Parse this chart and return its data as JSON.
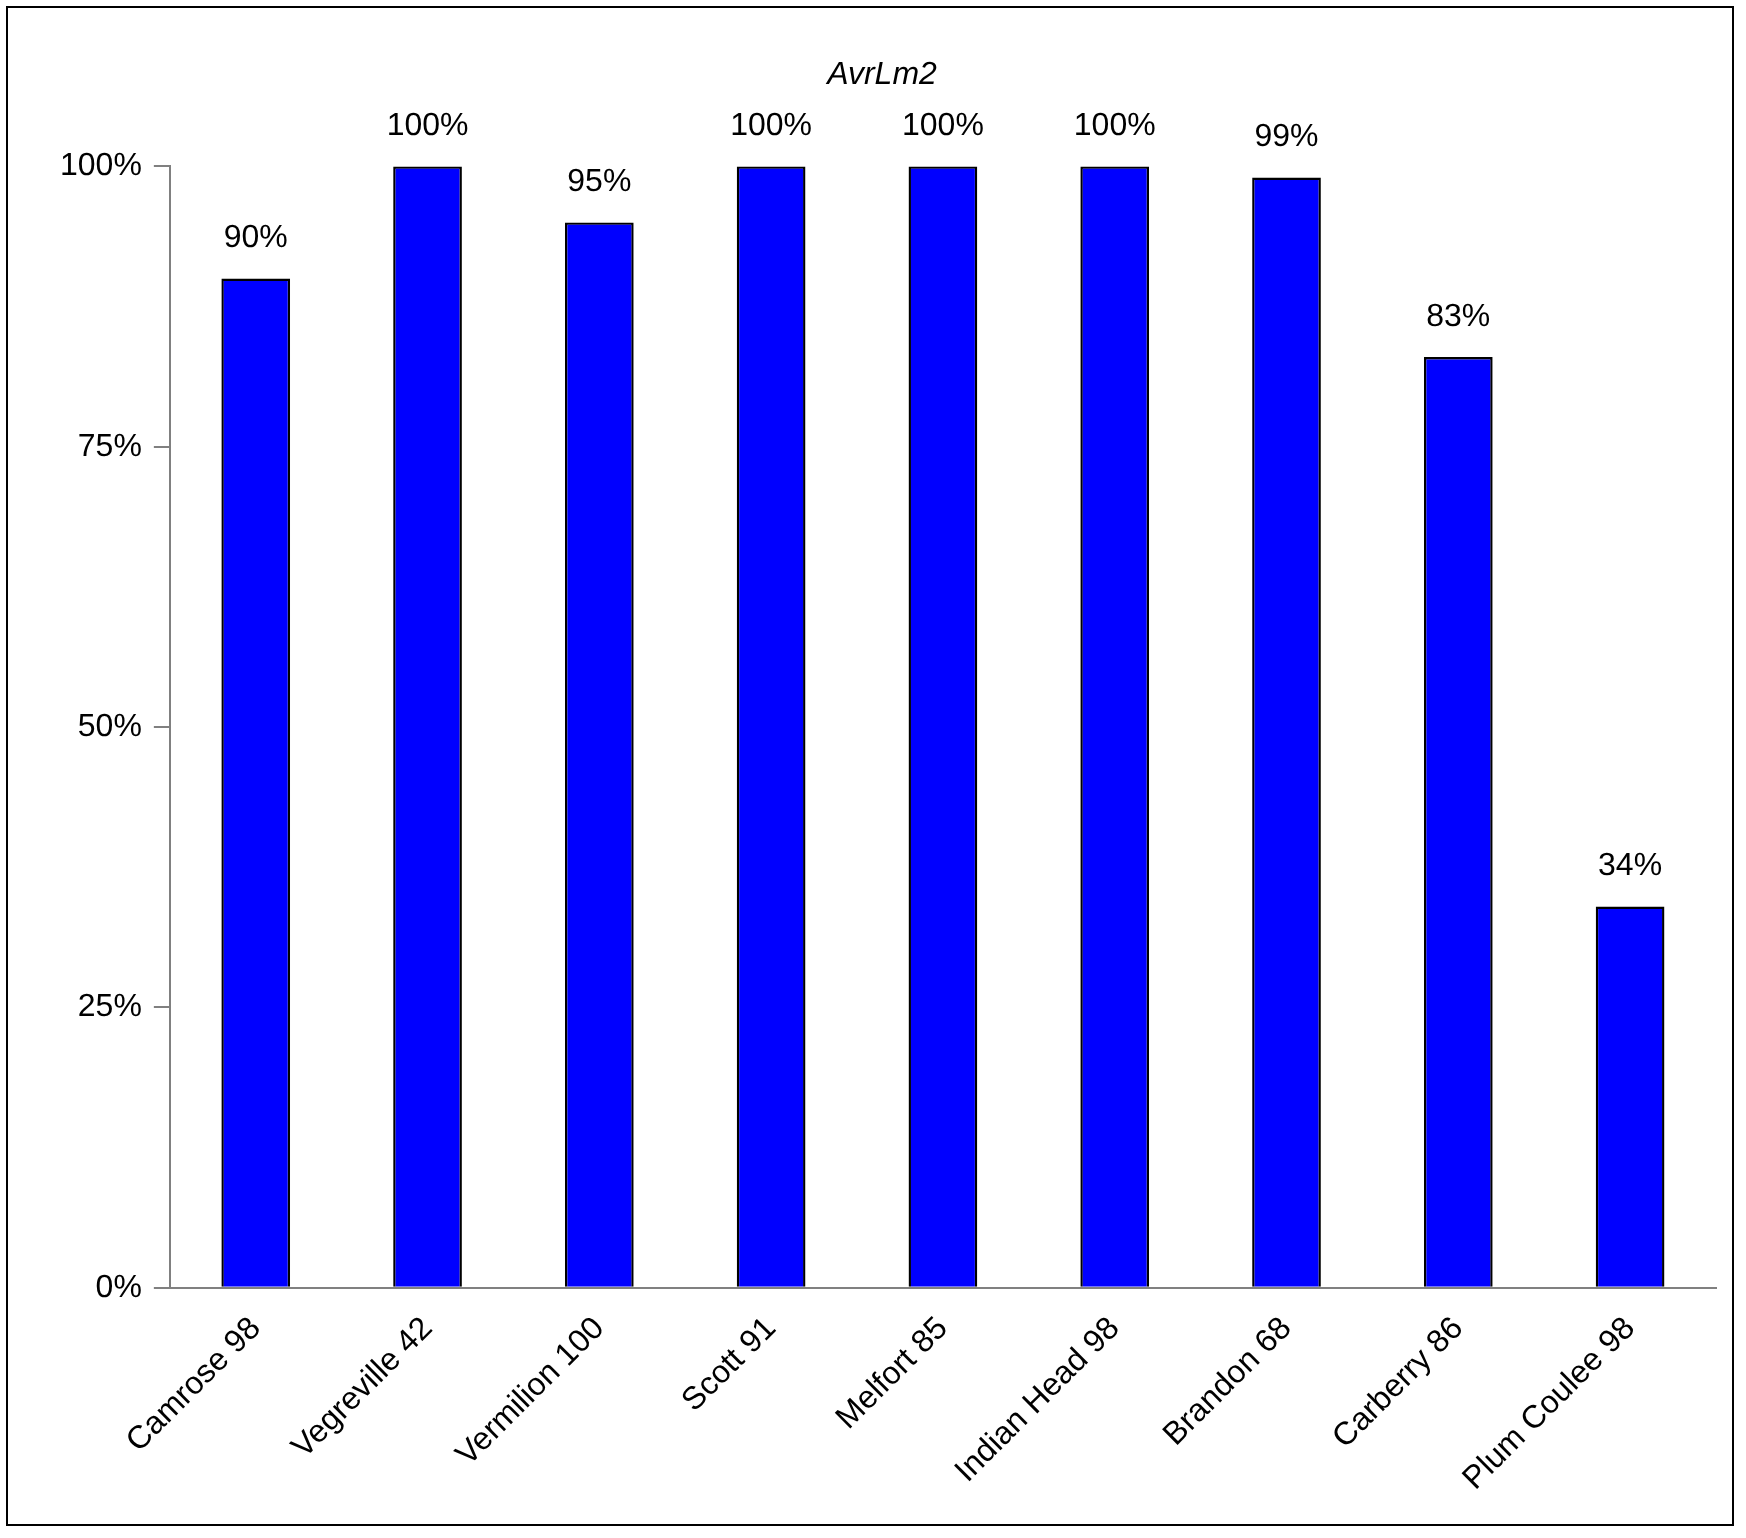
{
  "chart_data": {
    "type": "bar",
    "title": "AvrLm2",
    "categories": [
      "Camrose 98",
      "Vegreville 42",
      "Vermilion 100",
      "Scott 91",
      "Melfort 85",
      "Indian Head 98",
      "Brandon 68",
      "Carberry 86",
      "Plum Coulee 98"
    ],
    "values": [
      90,
      100,
      95,
      100,
      100,
      100,
      99,
      83,
      34
    ],
    "value_labels": [
      "90%",
      "100%",
      "95%",
      "100%",
      "100%",
      "100%",
      "99%",
      "83%",
      "34%"
    ],
    "color": "#0000ff",
    "ylim": [
      0,
      100
    ],
    "yticks": [
      {
        "value": 0,
        "label": "0%"
      },
      {
        "value": 25,
        "label": "25%"
      },
      {
        "value": 50,
        "label": "50%"
      },
      {
        "value": 75,
        "label": "75%"
      },
      {
        "value": 100,
        "label": "100%"
      }
    ],
    "grid": false,
    "legend": false
  }
}
